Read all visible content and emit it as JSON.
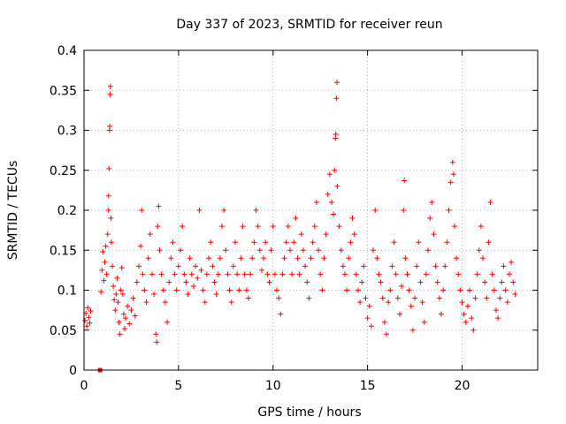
{
  "chart_data": {
    "type": "scatter",
    "title": "Day 337 of 2023, SRMTID for receiver reun",
    "xlabel": "GPS time / hours",
    "ylabel": "SRMTID / TECUs",
    "xlim": [
      0,
      24
    ],
    "ylim": [
      0,
      0.4
    ],
    "xticks": [
      0,
      5,
      10,
      15,
      20
    ],
    "xtick_labels": [
      "0",
      "5",
      "10",
      "15",
      "20"
    ],
    "yticks": [
      0,
      0.05,
      0.1,
      0.15,
      0.2,
      0.25,
      0.3,
      0.35,
      0.4
    ],
    "ytick_labels": [
      "0",
      "0.05",
      "0.1",
      "0.15",
      "0.2",
      "0.25",
      "0.3",
      "0.35",
      "0.4"
    ],
    "grid": true,
    "marker": "+",
    "color": "#ff0000",
    "marker_square_color": "#ff0000",
    "series": [
      {
        "name": "SRMTID",
        "points": [
          [
            0.05,
            0.062
          ],
          [
            0.1,
            0.071
          ],
          [
            0.15,
            0.055
          ],
          [
            0.2,
            0.078
          ],
          [
            0.25,
            0.066
          ],
          [
            0.3,
            0.059
          ],
          [
            0.35,
            0.074
          ],
          [
            0.85,
            0.0
          ],
          [
            0.9,
            0.098
          ],
          [
            0.95,
            0.125
          ],
          [
            1.0,
            0.148
          ],
          [
            1.05,
            0.112
          ],
          [
            1.1,
            0.135
          ],
          [
            1.15,
            0.155
          ],
          [
            1.2,
            0.12
          ],
          [
            1.25,
            0.17
          ],
          [
            1.3,
            0.2
          ],
          [
            1.3,
            0.218
          ],
          [
            1.32,
            0.252
          ],
          [
            1.35,
            0.3
          ],
          [
            1.36,
            0.305
          ],
          [
            1.38,
            0.345
          ],
          [
            1.4,
            0.355
          ],
          [
            1.42,
            0.19
          ],
          [
            1.45,
            0.16
          ],
          [
            1.5,
            0.13
          ],
          [
            1.55,
            0.105
          ],
          [
            1.6,
            0.088
          ],
          [
            1.65,
            0.075
          ],
          [
            1.7,
            0.095
          ],
          [
            1.75,
            0.115
          ],
          [
            1.8,
            0.085
          ],
          [
            1.85,
            0.06
          ],
          [
            1.9,
            0.045
          ],
          [
            1.95,
            0.1
          ],
          [
            2.0,
            0.128
          ],
          [
            2.05,
            0.095
          ],
          [
            2.1,
            0.07
          ],
          [
            2.15,
            0.052
          ],
          [
            2.2,
            0.065
          ],
          [
            2.3,
            0.08
          ],
          [
            2.4,
            0.058
          ],
          [
            2.5,
            0.075
          ],
          [
            2.6,
            0.09
          ],
          [
            2.7,
            0.068
          ],
          [
            2.8,
            0.11
          ],
          [
            2.9,
            0.13
          ],
          [
            3.0,
            0.155
          ],
          [
            3.05,
            0.2
          ],
          [
            3.1,
            0.12
          ],
          [
            3.2,
            0.1
          ],
          [
            3.3,
            0.085
          ],
          [
            3.4,
            0.14
          ],
          [
            3.5,
            0.17
          ],
          [
            3.6,
            0.12
          ],
          [
            3.7,
            0.095
          ],
          [
            3.8,
            0.045
          ],
          [
            3.85,
            0.035
          ],
          [
            3.9,
            0.18
          ],
          [
            3.95,
            0.205
          ],
          [
            4.0,
            0.15
          ],
          [
            4.1,
            0.12
          ],
          [
            4.2,
            0.1
          ],
          [
            4.3,
            0.085
          ],
          [
            4.4,
            0.06
          ],
          [
            4.5,
            0.11
          ],
          [
            4.6,
            0.14
          ],
          [
            4.7,
            0.16
          ],
          [
            4.8,
            0.12
          ],
          [
            4.9,
            0.1
          ],
          [
            5.0,
            0.13
          ],
          [
            5.1,
            0.15
          ],
          [
            5.2,
            0.18
          ],
          [
            5.3,
            0.12
          ],
          [
            5.4,
            0.11
          ],
          [
            5.5,
            0.095
          ],
          [
            5.6,
            0.14
          ],
          [
            5.7,
            0.12
          ],
          [
            5.8,
            0.105
          ],
          [
            5.9,
            0.13
          ],
          [
            6.0,
            0.115
          ],
          [
            6.1,
            0.2
          ],
          [
            6.2,
            0.125
          ],
          [
            6.3,
            0.1
          ],
          [
            6.4,
            0.085
          ],
          [
            6.5,
            0.12
          ],
          [
            6.6,
            0.14
          ],
          [
            6.7,
            0.16
          ],
          [
            6.8,
            0.13
          ],
          [
            6.9,
            0.11
          ],
          [
            7.0,
            0.095
          ],
          [
            7.1,
            0.12
          ],
          [
            7.2,
            0.14
          ],
          [
            7.3,
            0.18
          ],
          [
            7.4,
            0.2
          ],
          [
            7.5,
            0.15
          ],
          [
            7.6,
            0.12
          ],
          [
            7.7,
            0.1
          ],
          [
            7.8,
            0.085
          ],
          [
            7.9,
            0.13
          ],
          [
            8.0,
            0.16
          ],
          [
            8.1,
            0.12
          ],
          [
            8.2,
            0.1
          ],
          [
            8.3,
            0.14
          ],
          [
            8.4,
            0.18
          ],
          [
            8.5,
            0.12
          ],
          [
            8.6,
            0.1
          ],
          [
            8.7,
            0.09
          ],
          [
            8.8,
            0.12
          ],
          [
            8.9,
            0.14
          ],
          [
            9.0,
            0.16
          ],
          [
            9.1,
            0.2
          ],
          [
            9.2,
            0.18
          ],
          [
            9.3,
            0.15
          ],
          [
            9.4,
            0.125
          ],
          [
            9.5,
            0.14
          ],
          [
            9.6,
            0.16
          ],
          [
            9.7,
            0.12
          ],
          [
            9.8,
            0.11
          ],
          [
            9.9,
            0.15
          ],
          [
            10.0,
            0.18
          ],
          [
            10.1,
            0.12
          ],
          [
            10.2,
            0.1
          ],
          [
            10.3,
            0.09
          ],
          [
            10.4,
            0.07
          ],
          [
            10.5,
            0.12
          ],
          [
            10.6,
            0.14
          ],
          [
            10.7,
            0.16
          ],
          [
            10.8,
            0.18
          ],
          [
            10.9,
            0.15
          ],
          [
            11.0,
            0.12
          ],
          [
            11.1,
            0.16
          ],
          [
            11.2,
            0.19
          ],
          [
            11.3,
            0.14
          ],
          [
            11.4,
            0.12
          ],
          [
            11.5,
            0.17
          ],
          [
            11.6,
            0.15
          ],
          [
            11.7,
            0.13
          ],
          [
            11.8,
            0.11
          ],
          [
            11.9,
            0.09
          ],
          [
            12.0,
            0.14
          ],
          [
            12.1,
            0.16
          ],
          [
            12.2,
            0.18
          ],
          [
            12.3,
            0.21
          ],
          [
            12.4,
            0.15
          ],
          [
            12.5,
            0.12
          ],
          [
            12.6,
            0.1
          ],
          [
            12.7,
            0.14
          ],
          [
            12.8,
            0.17
          ],
          [
            12.9,
            0.22
          ],
          [
            13.0,
            0.245
          ],
          [
            13.1,
            0.21
          ],
          [
            13.2,
            0.195
          ],
          [
            13.25,
            0.25
          ],
          [
            13.3,
            0.29
          ],
          [
            13.32,
            0.295
          ],
          [
            13.35,
            0.34
          ],
          [
            13.38,
            0.36
          ],
          [
            13.4,
            0.23
          ],
          [
            13.5,
            0.18
          ],
          [
            13.6,
            0.15
          ],
          [
            13.7,
            0.13
          ],
          [
            13.8,
            0.12
          ],
          [
            13.9,
            0.1
          ],
          [
            14.0,
            0.14
          ],
          [
            14.1,
            0.16
          ],
          [
            14.2,
            0.19
          ],
          [
            14.3,
            0.17
          ],
          [
            14.4,
            0.12
          ],
          [
            14.5,
            0.1
          ],
          [
            14.6,
            0.085
          ],
          [
            14.7,
            0.11
          ],
          [
            14.8,
            0.13
          ],
          [
            14.9,
            0.09
          ],
          [
            15.0,
            0.065
          ],
          [
            15.1,
            0.08
          ],
          [
            15.2,
            0.055
          ],
          [
            15.3,
            0.15
          ],
          [
            15.4,
            0.2
          ],
          [
            15.5,
            0.14
          ],
          [
            15.6,
            0.12
          ],
          [
            15.7,
            0.11
          ],
          [
            15.8,
            0.09
          ],
          [
            15.9,
            0.06
          ],
          [
            16.0,
            0.045
          ],
          [
            16.1,
            0.085
          ],
          [
            16.2,
            0.1
          ],
          [
            16.3,
            0.13
          ],
          [
            16.4,
            0.16
          ],
          [
            16.5,
            0.12
          ],
          [
            16.6,
            0.09
          ],
          [
            16.7,
            0.07
          ],
          [
            16.8,
            0.105
          ],
          [
            16.9,
            0.2
          ],
          [
            16.95,
            0.237
          ],
          [
            17.0,
            0.14
          ],
          [
            17.1,
            0.12
          ],
          [
            17.2,
            0.1
          ],
          [
            17.3,
            0.08
          ],
          [
            17.4,
            0.05
          ],
          [
            17.5,
            0.09
          ],
          [
            17.6,
            0.13
          ],
          [
            17.7,
            0.16
          ],
          [
            17.8,
            0.11
          ],
          [
            17.9,
            0.085
          ],
          [
            18.0,
            0.06
          ],
          [
            18.1,
            0.12
          ],
          [
            18.2,
            0.15
          ],
          [
            18.3,
            0.19
          ],
          [
            18.4,
            0.21
          ],
          [
            18.5,
            0.17
          ],
          [
            18.6,
            0.13
          ],
          [
            18.7,
            0.11
          ],
          [
            18.8,
            0.09
          ],
          [
            18.9,
            0.07
          ],
          [
            19.0,
            0.1
          ],
          [
            19.1,
            0.13
          ],
          [
            19.2,
            0.16
          ],
          [
            19.3,
            0.2
          ],
          [
            19.4,
            0.235
          ],
          [
            19.5,
            0.26
          ],
          [
            19.55,
            0.245
          ],
          [
            19.6,
            0.18
          ],
          [
            19.7,
            0.14
          ],
          [
            19.8,
            0.12
          ],
          [
            19.9,
            0.1
          ],
          [
            20.0,
            0.085
          ],
          [
            20.1,
            0.07
          ],
          [
            20.2,
            0.06
          ],
          [
            20.3,
            0.08
          ],
          [
            20.4,
            0.1
          ],
          [
            20.5,
            0.065
          ],
          [
            20.6,
            0.05
          ],
          [
            20.7,
            0.09
          ],
          [
            20.8,
            0.12
          ],
          [
            20.9,
            0.15
          ],
          [
            21.0,
            0.18
          ],
          [
            21.1,
            0.14
          ],
          [
            21.2,
            0.11
          ],
          [
            21.3,
            0.09
          ],
          [
            21.4,
            0.16
          ],
          [
            21.5,
            0.21
          ],
          [
            21.6,
            0.12
          ],
          [
            21.7,
            0.1
          ],
          [
            21.8,
            0.075
          ],
          [
            21.9,
            0.065
          ],
          [
            22.0,
            0.09
          ],
          [
            22.1,
            0.11
          ],
          [
            22.2,
            0.13
          ],
          [
            22.3,
            0.1
          ],
          [
            22.4,
            0.085
          ],
          [
            22.5,
            0.12
          ],
          [
            22.6,
            0.135
          ],
          [
            22.7,
            0.11
          ],
          [
            22.8,
            0.095
          ]
        ]
      }
    ]
  }
}
